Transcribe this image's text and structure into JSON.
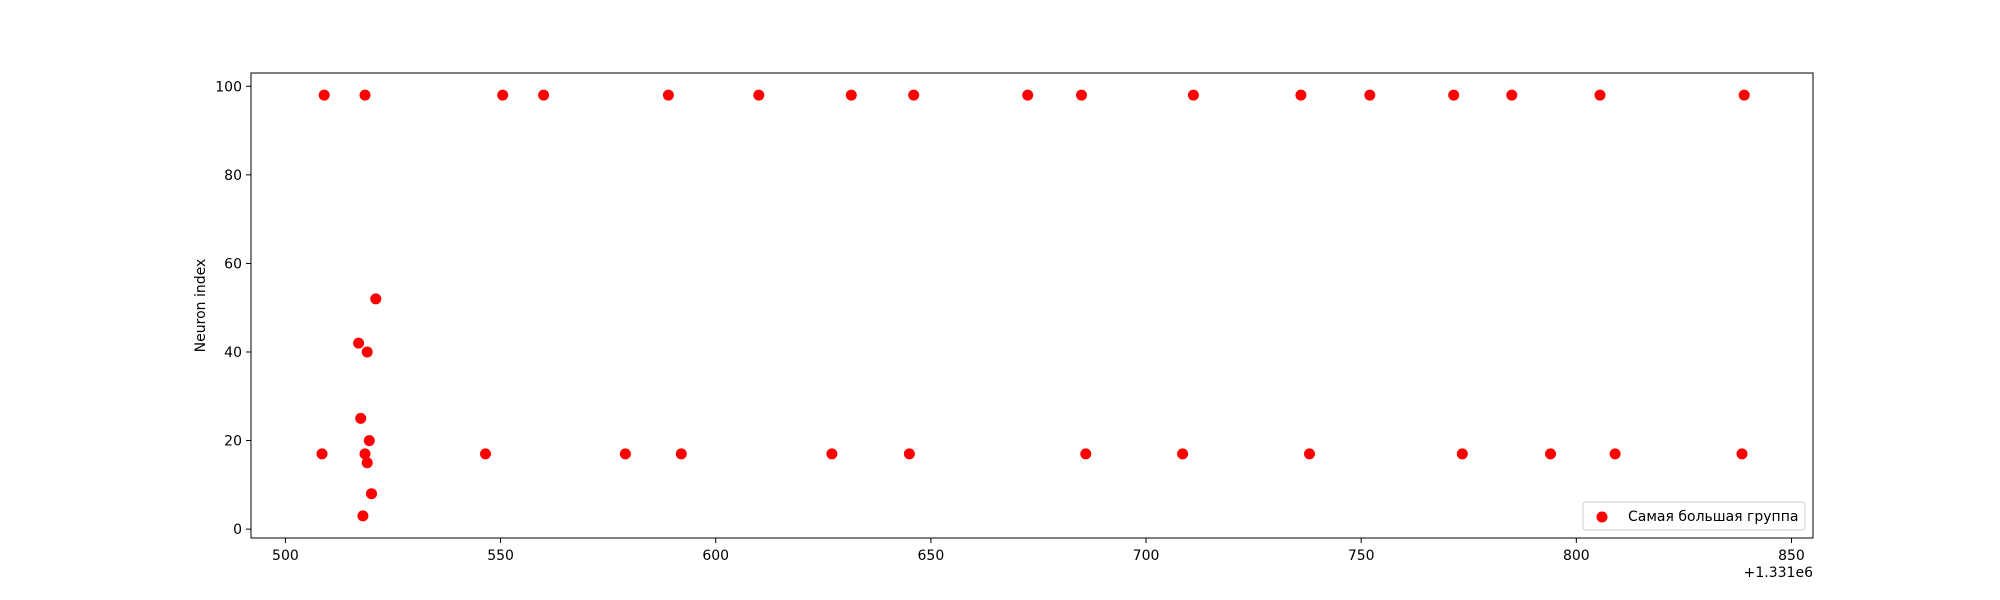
{
  "chart_data": {
    "type": "scatter",
    "title": "",
    "xlabel": "",
    "ylabel": "Neuron index",
    "x_offset_label": "+1.331e6",
    "xlim": [
      1331492,
      1331855
    ],
    "ylim": [
      -2,
      103
    ],
    "x_ticks": [
      1331500,
      1331550,
      1331600,
      1331650,
      1331700,
      1331750,
      1331800,
      1331850
    ],
    "x_tick_labels": [
      "500",
      "550",
      "600",
      "650",
      "700",
      "750",
      "800",
      "850"
    ],
    "y_ticks": [
      0,
      20,
      40,
      60,
      80,
      100
    ],
    "y_tick_labels": [
      "0",
      "20",
      "40",
      "60",
      "80",
      "100"
    ],
    "grid": false,
    "legend_position": "lower-right",
    "series": [
      {
        "name": "Самая большая группа",
        "color": "#ff0000",
        "points": [
          [
            1331509,
            98
          ],
          [
            1331518.5,
            98
          ],
          [
            1331550.5,
            98
          ],
          [
            1331560,
            98
          ],
          [
            1331589,
            98
          ],
          [
            1331610,
            98
          ],
          [
            1331631.5,
            98
          ],
          [
            1331646,
            98
          ],
          [
            1331672.5,
            98
          ],
          [
            1331685,
            98
          ],
          [
            1331711,
            98
          ],
          [
            1331736,
            98
          ],
          [
            1331752,
            98
          ],
          [
            1331771.5,
            98
          ],
          [
            1331785,
            98
          ],
          [
            1331805.5,
            98
          ],
          [
            1331839,
            98
          ],
          [
            1331508.5,
            17
          ],
          [
            1331546.5,
            17
          ],
          [
            1331579,
            17
          ],
          [
            1331592,
            17
          ],
          [
            1331627,
            17
          ],
          [
            1331645,
            17
          ],
          [
            1331686,
            17
          ],
          [
            1331708.5,
            17
          ],
          [
            1331738,
            17
          ],
          [
            1331773.5,
            17
          ],
          [
            1331794,
            17
          ],
          [
            1331809,
            17
          ],
          [
            1331838.5,
            17
          ],
          [
            1331521,
            52
          ],
          [
            1331517,
            42
          ],
          [
            1331519,
            40
          ],
          [
            1331517.5,
            25
          ],
          [
            1331519.5,
            20
          ],
          [
            1331518.5,
            17
          ],
          [
            1331519,
            15
          ],
          [
            1331520,
            8
          ],
          [
            1331518,
            3
          ]
        ]
      }
    ]
  }
}
